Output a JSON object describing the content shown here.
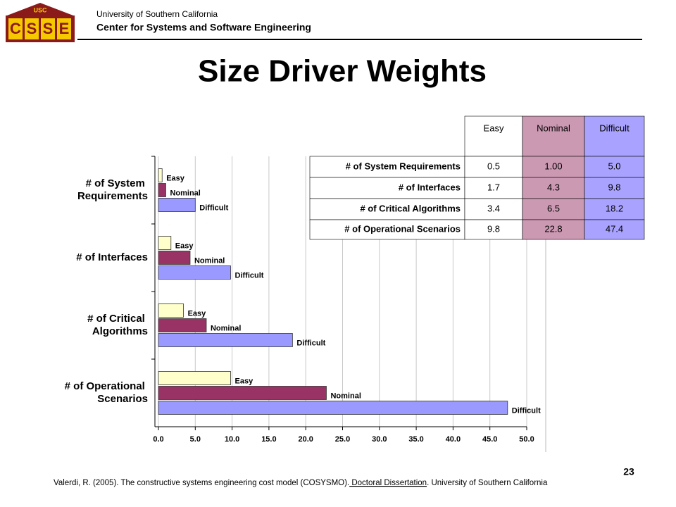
{
  "header": {
    "logo": {
      "top": "USC",
      "letters": [
        "C",
        "S",
        "S",
        "E"
      ]
    },
    "university": "University of Southern California",
    "center": "Center for Systems and Software Engineering"
  },
  "title": "Size Driver Weights",
  "chart_data": {
    "type": "hbar",
    "categories": [
      "# of System Requirements",
      "# of Interfaces",
      "# of Critical Algorithms",
      "# of Operational Scenarios"
    ],
    "series": [
      {
        "name": "Easy",
        "color": "#ffffcc",
        "values": [
          0.5,
          1.7,
          3.4,
          9.8
        ]
      },
      {
        "name": "Nominal",
        "color": "#993366",
        "values": [
          1.0,
          4.3,
          6.5,
          22.8
        ]
      },
      {
        "name": "Difficult",
        "color": "#9999ff",
        "values": [
          5.0,
          9.8,
          18.2,
          47.4
        ]
      }
    ],
    "xlim": [
      0,
      50
    ],
    "xticks": [
      {
        "value": 0,
        "label": "0.0"
      },
      {
        "value": 5,
        "label": "5.0"
      },
      {
        "value": 10,
        "label": "10.0"
      },
      {
        "value": 15,
        "label": "15.0"
      },
      {
        "value": 20,
        "label": "20.0"
      },
      {
        "value": 25,
        "label": "25.0"
      },
      {
        "value": 30,
        "label": "30.0"
      },
      {
        "value": 35,
        "label": "35.0"
      },
      {
        "value": 40,
        "label": "40.0"
      },
      {
        "value": 45,
        "label": "45.0"
      },
      {
        "value": 50,
        "label": "50.0"
      }
    ],
    "grid": true
  },
  "table": {
    "columns": [
      "Easy",
      "Nominal",
      "Difficult"
    ],
    "column_colors": [
      "#ffffff",
      "#cc99b3",
      "#a9a3ff"
    ],
    "rows": [
      [
        "# of System Requirements",
        "0.5",
        "1.00",
        "5.0"
      ],
      [
        "# of Interfaces",
        "1.7",
        "4.3",
        "9.8"
      ],
      [
        "# of Critical Algorithms",
        "3.4",
        "6.5",
        "18.2"
      ],
      [
        "# of Operational Scenarios",
        "9.8",
        "22.8",
        "47.4"
      ]
    ]
  },
  "footer": {
    "before": "Valerdi, R. (2005). The constructive systems engineering cost model (COSYSMO).",
    "link": " Doctoral Dissertation",
    "after": ". University of Southern California"
  },
  "page_number": "23"
}
